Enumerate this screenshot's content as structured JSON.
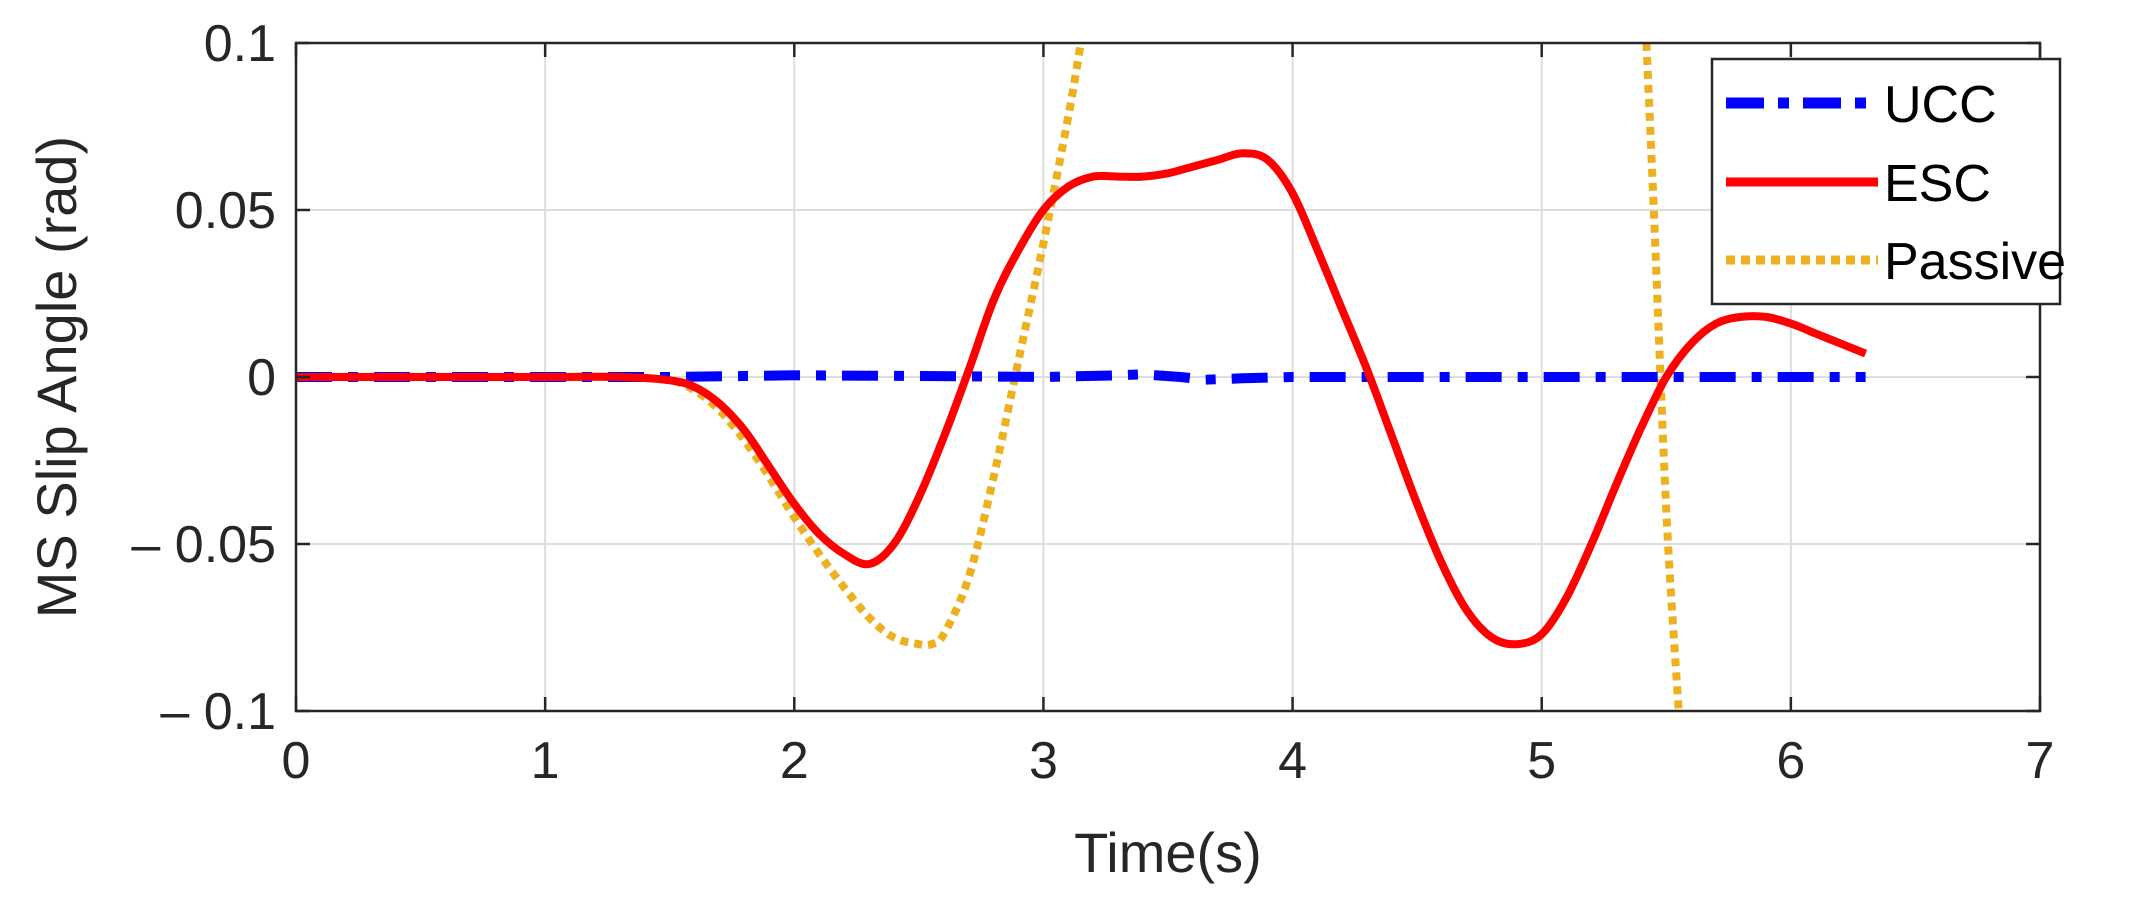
{
  "chart_data": {
    "type": "line",
    "xlabel": "Time(s)",
    "ylabel": "MS Slip Angle (rad)",
    "xlim": [
      0,
      7
    ],
    "ylim": [
      -0.1,
      0.1
    ],
    "xticks": [
      0,
      1,
      2,
      3,
      4,
      5,
      6,
      7
    ],
    "xtick_labels": [
      "0",
      "1",
      "2",
      "3",
      "4",
      "5",
      "6",
      "7"
    ],
    "yticks": [
      0.1,
      0.05,
      0,
      -0.05,
      -0.1
    ],
    "ytick_labels": [
      "0.1",
      "0.05",
      "0",
      "– 0.05",
      "– 0.1"
    ],
    "grid": true,
    "legend_position": "top-right",
    "series": [
      {
        "name": "UCC",
        "color": "#0000ff",
        "style": "dash-dot",
        "x": [
          0,
          0.5,
          1.0,
          1.5,
          2.0,
          2.5,
          3.0,
          3.3,
          3.4,
          3.55,
          3.65,
          3.8,
          4.0,
          4.5,
          5.0,
          5.5,
          6.0,
          6.3
        ],
        "y": [
          0,
          0,
          0,
          0,
          0.0005,
          0.0003,
          0,
          0.0005,
          0.0008,
          0,
          -0.0008,
          -0.0004,
          0,
          0,
          0,
          0,
          0,
          0
        ]
      },
      {
        "name": "ESC",
        "color": "#ff0000",
        "style": "solid",
        "x": [
          0,
          0.5,
          1.0,
          1.3,
          1.5,
          1.6,
          1.7,
          1.8,
          1.9,
          2.0,
          2.1,
          2.2,
          2.3,
          2.4,
          2.5,
          2.6,
          2.7,
          2.8,
          2.9,
          3.0,
          3.1,
          3.2,
          3.3,
          3.4,
          3.5,
          3.6,
          3.7,
          3.8,
          3.9,
          4.0,
          4.1,
          4.2,
          4.3,
          4.4,
          4.5,
          4.6,
          4.7,
          4.8,
          4.9,
          5.0,
          5.1,
          5.2,
          5.3,
          5.4,
          5.5,
          5.6,
          5.7,
          5.8,
          5.9,
          6.0,
          6.1,
          6.2,
          6.3
        ],
        "y": [
          0,
          0,
          0,
          0,
          -0.001,
          -0.003,
          -0.008,
          -0.016,
          -0.027,
          -0.038,
          -0.047,
          -0.053,
          -0.056,
          -0.05,
          -0.036,
          -0.018,
          0.002,
          0.023,
          0.038,
          0.05,
          0.057,
          0.06,
          0.06,
          0.06,
          0.061,
          0.063,
          0.065,
          0.067,
          0.065,
          0.055,
          0.038,
          0.02,
          0.002,
          -0.018,
          -0.038,
          -0.056,
          -0.07,
          -0.078,
          -0.08,
          -0.077,
          -0.066,
          -0.05,
          -0.032,
          -0.015,
          0,
          0.01,
          0.016,
          0.018,
          0.018,
          0.016,
          0.013,
          0.01,
          0.007
        ]
      },
      {
        "name": "Passive",
        "color": "#edb120",
        "style": "dotted",
        "x": [
          0,
          0.5,
          1.0,
          1.3,
          1.5,
          1.6,
          1.7,
          1.8,
          1.9,
          2.0,
          2.1,
          2.2,
          2.3,
          2.4,
          2.5,
          2.55,
          2.6,
          2.7,
          2.8,
          2.9,
          3.0,
          3.1,
          3.15,
          5.42,
          5.45,
          5.5,
          5.55
        ],
        "y": [
          0,
          0,
          0,
          0,
          -0.001,
          -0.004,
          -0.01,
          -0.019,
          -0.03,
          -0.042,
          -0.053,
          -0.063,
          -0.072,
          -0.078,
          -0.08,
          -0.08,
          -0.077,
          -0.06,
          -0.03,
          0.005,
          0.04,
          0.078,
          0.1,
          0.1,
          0.05,
          -0.04,
          -0.1
        ]
      }
    ]
  }
}
